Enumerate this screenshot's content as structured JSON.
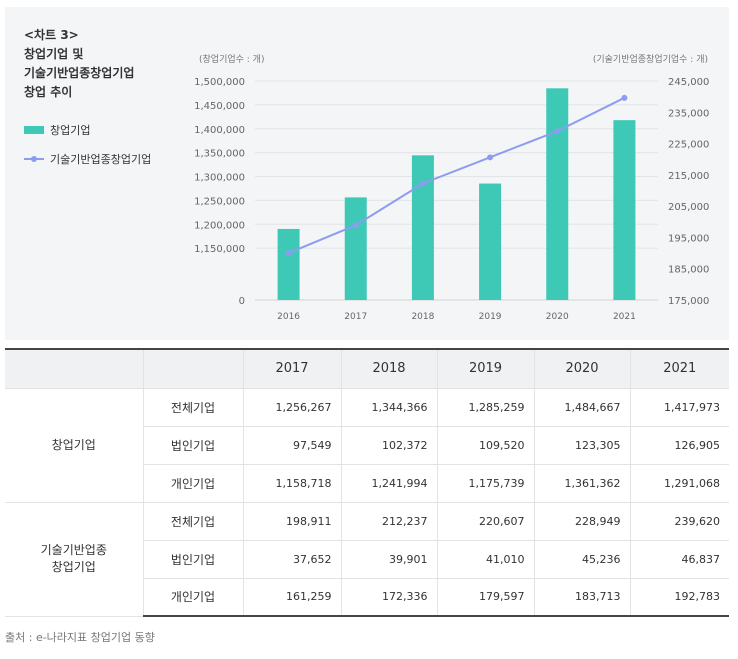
{
  "panel": {
    "label": "<차트 3>",
    "title_line1": "창업기업 및",
    "title_line2": "기술기반업종창업기업",
    "title_line3": "창업 추이"
  },
  "legend": {
    "bar_label": "창업기업",
    "line_label": "기술기반업종창업기업"
  },
  "chart_data": {
    "type": "bar+line",
    "left_axis_unit": "(창업기업수 : 개)",
    "right_axis_unit": "(기술기반업종창업기업수 : 개)",
    "categories": [
      "2016",
      "2017",
      "2018",
      "2019",
      "2020",
      "2021"
    ],
    "left_ticks": [
      "1,500,000",
      "1,450,000",
      "1,400,000",
      "1,350,000",
      "1,300,000",
      "1,250,000",
      "1,200,000",
      "1,150,000",
      "0"
    ],
    "right_ticks": [
      "245,000",
      "235,000",
      "225,000",
      "215,000",
      "205,000",
      "195,000",
      "185,000",
      "175,000"
    ],
    "left_ylim": [
      1100000,
      1500000
    ],
    "right_ylim": [
      175000,
      245000
    ],
    "series": [
      {
        "name": "창업기업",
        "kind": "bar",
        "axis": "left",
        "values": [
          1190177,
          1256267,
          1344366,
          1285259,
          1484667,
          1417973
        ]
      },
      {
        "name": "기술기반업종창업기업",
        "kind": "line",
        "axis": "right",
        "values": [
          190000,
          198911,
          212237,
          220607,
          228949,
          239620
        ]
      }
    ],
    "colors": {
      "bar": "#3ec9b6",
      "line": "#8e9cf0"
    }
  },
  "table": {
    "columns": [
      "2017",
      "2018",
      "2019",
      "2020",
      "2021"
    ],
    "groups": [
      {
        "name": "창업기업",
        "rows": [
          {
            "label": "전체기업",
            "values": [
              "1,256,267",
              "1,344,366",
              "1,285,259",
              "1,484,667",
              "1,417,973"
            ]
          },
          {
            "label": "법인기업",
            "values": [
              "97,549",
              "102,372",
              "109,520",
              "123,305",
              "126,905"
            ]
          },
          {
            "label": "개인기업",
            "values": [
              "1,158,718",
              "1,241,994",
              "1,175,739",
              "1,361,362",
              "1,291,068"
            ]
          }
        ]
      },
      {
        "name_line1": "기술기반업종",
        "name_line2": "창업기업",
        "rows": [
          {
            "label": "전체기업",
            "values": [
              "198,911",
              "212,237",
              "220,607",
              "228,949",
              "239,620"
            ]
          },
          {
            "label": "법인기업",
            "values": [
              "37,652",
              "39,901",
              "41,010",
              "45,236",
              "46,837"
            ]
          },
          {
            "label": "개인기업",
            "values": [
              "161,259",
              "172,336",
              "179,597",
              "183,713",
              "192,783"
            ]
          }
        ]
      }
    ]
  },
  "source": "출처 : e-나라지표 창업기업 동향"
}
